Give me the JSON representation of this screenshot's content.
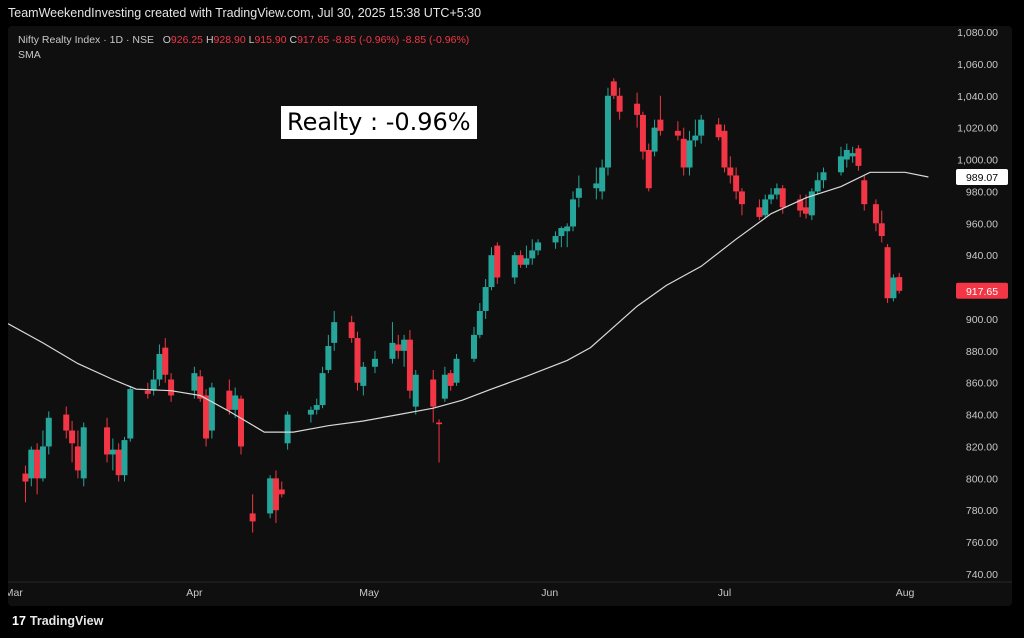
{
  "header": {
    "credit": "TeamWeekendInvesting created with TradingView.com, Jul 30, 2025 15:38 UTC+5:30"
  },
  "legend": {
    "symbol": "Nifty Realty Index · 1D · NSE",
    "o_label": "O",
    "o_value": "926.25",
    "h_label": "H",
    "h_value": "928.90",
    "l_label": "L",
    "l_value": "915.90",
    "c_label": "C",
    "c_value": "917.65",
    "change1": "-8.85 (-0.96%)",
    "change2": "-8.85 (-0.96%)",
    "indicator": "SMA"
  },
  "annotation": {
    "text": "Realty : -0.96%"
  },
  "footer": {
    "brand": "TradingView",
    "logo": "17"
  },
  "colors": {
    "up": "#26a69a",
    "down": "#f23645",
    "sma": "#d9d9d9",
    "background": "#0f0f0f",
    "axis_text": "#c8c8c8"
  },
  "chart_data": {
    "type": "candlestick",
    "title": "Nifty Realty Index · 1D · NSE",
    "ylim": [
      740,
      1080
    ],
    "y_ticks": [
      "1,080.00",
      "1,060.00",
      "1,040.00",
      "1,020.00",
      "1,000.00",
      "980.00",
      "960.00",
      "940.00",
      "920.00",
      "900.00",
      "880.00",
      "860.00",
      "840.00",
      "820.00",
      "800.00",
      "780.00",
      "760.00",
      "740.00"
    ],
    "x_ticks": [
      "Mar",
      "Apr",
      "May",
      "Jun",
      "Jul",
      "Aug"
    ],
    "x_tick_dates": [
      "2025-03-01",
      "2025-04-01",
      "2025-05-01",
      "2025-06-01",
      "2025-07-01",
      "2025-08-01"
    ],
    "x_range": [
      "2025-02-28",
      "2025-08-07"
    ],
    "price_labels": {
      "sma_last": "989.07",
      "close_last": "917.65"
    },
    "candles": [
      {
        "d": "2025-03-03",
        "o": 803,
        "h": 808,
        "l": 785,
        "c": 798
      },
      {
        "d": "2025-03-04",
        "o": 800,
        "h": 820,
        "l": 795,
        "c": 818
      },
      {
        "d": "2025-03-05",
        "o": 818,
        "h": 822,
        "l": 790,
        "c": 800
      },
      {
        "d": "2025-03-06",
        "o": 800,
        "h": 830,
        "l": 798,
        "c": 820
      },
      {
        "d": "2025-03-07",
        "o": 820,
        "h": 842,
        "l": 815,
        "c": 838
      },
      {
        "d": "2025-03-10",
        "o": 840,
        "h": 845,
        "l": 825,
        "c": 830
      },
      {
        "d": "2025-03-11",
        "o": 830,
        "h": 836,
        "l": 810,
        "c": 822
      },
      {
        "d": "2025-03-12",
        "o": 820,
        "h": 830,
        "l": 800,
        "c": 805
      },
      {
        "d": "2025-03-13",
        "o": 800,
        "h": 835,
        "l": 795,
        "c": 832
      },
      {
        "d": "2025-03-17",
        "o": 832,
        "h": 838,
        "l": 810,
        "c": 815
      },
      {
        "d": "2025-03-18",
        "o": 815,
        "h": 825,
        "l": 805,
        "c": 818
      },
      {
        "d": "2025-03-19",
        "o": 818,
        "h": 822,
        "l": 798,
        "c": 802
      },
      {
        "d": "2025-03-20",
        "o": 802,
        "h": 826,
        "l": 798,
        "c": 824
      },
      {
        "d": "2025-03-21",
        "o": 825,
        "h": 858,
        "l": 823,
        "c": 856
      },
      {
        "d": "2025-03-24",
        "o": 855,
        "h": 860,
        "l": 850,
        "c": 853
      },
      {
        "d": "2025-03-25",
        "o": 855,
        "h": 868,
        "l": 852,
        "c": 862
      },
      {
        "d": "2025-03-26",
        "o": 862,
        "h": 884,
        "l": 858,
        "c": 878
      },
      {
        "d": "2025-03-27",
        "o": 882,
        "h": 888,
        "l": 860,
        "c": 865
      },
      {
        "d": "2025-03-28",
        "o": 862,
        "h": 866,
        "l": 848,
        "c": 852
      },
      {
        "d": "2025-04-01",
        "o": 855,
        "h": 870,
        "l": 850,
        "c": 866
      },
      {
        "d": "2025-04-02",
        "o": 864,
        "h": 868,
        "l": 848,
        "c": 850
      },
      {
        "d": "2025-04-03",
        "o": 852,
        "h": 856,
        "l": 820,
        "c": 825
      },
      {
        "d": "2025-04-04",
        "o": 830,
        "h": 860,
        "l": 825,
        "c": 857
      },
      {
        "d": "2025-04-07",
        "o": 855,
        "h": 862,
        "l": 840,
        "c": 843
      },
      {
        "d": "2025-04-08",
        "o": 843,
        "h": 857,
        "l": 838,
        "c": 852
      },
      {
        "d": "2025-04-09",
        "o": 850,
        "h": 852,
        "l": 815,
        "c": 820
      },
      {
        "d": "2025-04-11",
        "o": 778,
        "h": 790,
        "l": 766,
        "c": 773
      },
      {
        "d": "2025-04-14",
        "o": 778,
        "h": 802,
        "l": 775,
        "c": 800
      },
      {
        "d": "2025-04-15",
        "o": 800,
        "h": 805,
        "l": 772,
        "c": 780
      },
      {
        "d": "2025-04-16",
        "o": 793,
        "h": 798,
        "l": 788,
        "c": 790
      },
      {
        "d": "2025-04-17",
        "o": 822,
        "h": 842,
        "l": 818,
        "c": 840
      },
      {
        "d": "2025-04-21",
        "o": 840,
        "h": 845,
        "l": 835,
        "c": 843
      },
      {
        "d": "2025-04-22",
        "o": 843,
        "h": 850,
        "l": 840,
        "c": 846
      },
      {
        "d": "2025-04-23",
        "o": 846,
        "h": 870,
        "l": 844,
        "c": 866
      },
      {
        "d": "2025-04-24",
        "o": 868,
        "h": 890,
        "l": 866,
        "c": 883
      },
      {
        "d": "2025-04-25",
        "o": 885,
        "h": 905,
        "l": 880,
        "c": 898
      },
      {
        "d": "2025-04-28",
        "o": 898,
        "h": 902,
        "l": 885,
        "c": 888
      },
      {
        "d": "2025-04-29",
        "o": 888,
        "h": 892,
        "l": 855,
        "c": 860
      },
      {
        "d": "2025-04-30",
        "o": 858,
        "h": 873,
        "l": 852,
        "c": 870
      },
      {
        "d": "2025-05-02",
        "o": 870,
        "h": 880,
        "l": 866,
        "c": 875
      },
      {
        "d": "2025-05-05",
        "o": 875,
        "h": 898,
        "l": 872,
        "c": 885
      },
      {
        "d": "2025-05-06",
        "o": 884,
        "h": 890,
        "l": 875,
        "c": 880
      },
      {
        "d": "2025-05-07",
        "o": 880,
        "h": 890,
        "l": 870,
        "c": 887
      },
      {
        "d": "2025-05-08",
        "o": 887,
        "h": 893,
        "l": 850,
        "c": 855
      },
      {
        "d": "2025-05-09",
        "o": 845,
        "h": 868,
        "l": 840,
        "c": 865
      },
      {
        "d": "2025-05-12",
        "o": 862,
        "h": 868,
        "l": 835,
        "c": 845
      },
      {
        "d": "2025-05-13",
        "o": 835,
        "h": 837,
        "l": 810,
        "c": 834
      },
      {
        "d": "2025-05-14",
        "o": 850,
        "h": 870,
        "l": 848,
        "c": 865
      },
      {
        "d": "2025-05-15",
        "o": 866,
        "h": 868,
        "l": 855,
        "c": 858
      },
      {
        "d": "2025-05-16",
        "o": 860,
        "h": 878,
        "l": 858,
        "c": 875
      },
      {
        "d": "2025-05-19",
        "o": 875,
        "h": 895,
        "l": 873,
        "c": 890
      },
      {
        "d": "2025-05-20",
        "o": 890,
        "h": 910,
        "l": 888,
        "c": 905
      },
      {
        "d": "2025-05-21",
        "o": 905,
        "h": 925,
        "l": 900,
        "c": 920
      },
      {
        "d": "2025-05-22",
        "o": 920,
        "h": 945,
        "l": 918,
        "c": 940
      },
      {
        "d": "2025-05-23",
        "o": 946,
        "h": 948,
        "l": 922,
        "c": 926
      },
      {
        "d": "2025-05-26",
        "o": 926,
        "h": 942,
        "l": 922,
        "c": 940
      },
      {
        "d": "2025-05-27",
        "o": 940,
        "h": 943,
        "l": 932,
        "c": 934
      },
      {
        "d": "2025-05-28",
        "o": 934,
        "h": 946,
        "l": 932,
        "c": 938
      },
      {
        "d": "2025-05-29",
        "o": 938,
        "h": 950,
        "l": 934,
        "c": 943
      },
      {
        "d": "2025-05-30",
        "o": 943,
        "h": 950,
        "l": 940,
        "c": 948
      },
      {
        "d": "2025-06-02",
        "o": 948,
        "h": 955,
        "l": 944,
        "c": 952
      },
      {
        "d": "2025-06-03",
        "o": 952,
        "h": 958,
        "l": 945,
        "c": 957
      },
      {
        "d": "2025-06-04",
        "o": 955,
        "h": 960,
        "l": 945,
        "c": 958
      },
      {
        "d": "2025-06-05",
        "o": 958,
        "h": 980,
        "l": 955,
        "c": 975
      },
      {
        "d": "2025-06-06",
        "o": 976,
        "h": 990,
        "l": 970,
        "c": 982
      },
      {
        "d": "2025-06-09",
        "o": 982,
        "h": 995,
        "l": 975,
        "c": 985
      },
      {
        "d": "2025-06-10",
        "o": 980,
        "h": 1000,
        "l": 975,
        "c": 995
      },
      {
        "d": "2025-06-11",
        "o": 995,
        "h": 1045,
        "l": 990,
        "c": 1040
      },
      {
        "d": "2025-06-12",
        "o": 1049,
        "h": 1051,
        "l": 1038,
        "c": 1040
      },
      {
        "d": "2025-06-13",
        "o": 1040,
        "h": 1045,
        "l": 1025,
        "c": 1030
      },
      {
        "d": "2025-06-16",
        "o": 1035,
        "h": 1042,
        "l": 1020,
        "c": 1028
      },
      {
        "d": "2025-06-17",
        "o": 1028,
        "h": 1030,
        "l": 1000,
        "c": 1005
      },
      {
        "d": "2025-06-18",
        "o": 1006,
        "h": 1010,
        "l": 980,
        "c": 982
      },
      {
        "d": "2025-06-19",
        "o": 1005,
        "h": 1025,
        "l": 1002,
        "c": 1020
      },
      {
        "d": "2025-06-20",
        "o": 1025,
        "h": 1040,
        "l": 1015,
        "c": 1018
      },
      {
        "d": "2025-06-23",
        "o": 1018,
        "h": 1024,
        "l": 1012,
        "c": 1015
      },
      {
        "d": "2025-06-24",
        "o": 1013,
        "h": 1020,
        "l": 990,
        "c": 995
      },
      {
        "d": "2025-06-25",
        "o": 995,
        "h": 1018,
        "l": 990,
        "c": 1012
      },
      {
        "d": "2025-06-26",
        "o": 1012,
        "h": 1025,
        "l": 1008,
        "c": 1015
      },
      {
        "d": "2025-06-27",
        "o": 1015,
        "h": 1028,
        "l": 1010,
        "c": 1025
      },
      {
        "d": "2025-06-30",
        "o": 1022,
        "h": 1026,
        "l": 1012,
        "c": 1014
      },
      {
        "d": "2025-07-01",
        "o": 1018,
        "h": 1022,
        "l": 992,
        "c": 995
      },
      {
        "d": "2025-07-02",
        "o": 995,
        "h": 1002,
        "l": 985,
        "c": 990
      },
      {
        "d": "2025-07-03",
        "o": 990,
        "h": 995,
        "l": 975,
        "c": 980
      },
      {
        "d": "2025-07-04",
        "o": 980,
        "h": 982,
        "l": 965,
        "c": 972
      },
      {
        "d": "2025-07-07",
        "o": 970,
        "h": 975,
        "l": 962,
        "c": 964
      },
      {
        "d": "2025-07-08",
        "o": 965,
        "h": 978,
        "l": 963,
        "c": 975
      },
      {
        "d": "2025-07-09",
        "o": 975,
        "h": 982,
        "l": 972,
        "c": 978
      },
      {
        "d": "2025-07-10",
        "o": 978,
        "h": 985,
        "l": 975,
        "c": 982
      },
      {
        "d": "2025-07-11",
        "o": 982,
        "h": 984,
        "l": 966,
        "c": 970
      },
      {
        "d": "2025-07-14",
        "o": 975,
        "h": 978,
        "l": 964,
        "c": 968
      },
      {
        "d": "2025-07-15",
        "o": 970,
        "h": 978,
        "l": 963,
        "c": 966
      },
      {
        "d": "2025-07-16",
        "o": 965,
        "h": 982,
        "l": 962,
        "c": 980
      },
      {
        "d": "2025-07-17",
        "o": 980,
        "h": 992,
        "l": 978,
        "c": 987
      },
      {
        "d": "2025-07-18",
        "o": 987,
        "h": 995,
        "l": 982,
        "c": 992
      },
      {
        "d": "2025-07-21",
        "o": 992,
        "h": 1008,
        "l": 990,
        "c": 1002
      },
      {
        "d": "2025-07-22",
        "o": 1000,
        "h": 1010,
        "l": 995,
        "c": 1006
      },
      {
        "d": "2025-07-23",
        "o": 1002,
        "h": 1008,
        "l": 998,
        "c": 1004
      },
      {
        "d": "2025-07-24",
        "o": 1007,
        "h": 1009,
        "l": 993,
        "c": 996
      },
      {
        "d": "2025-07-25",
        "o": 987,
        "h": 990,
        "l": 968,
        "c": 972
      },
      {
        "d": "2025-07-27",
        "o": 972,
        "h": 975,
        "l": 955,
        "c": 960
      },
      {
        "d": "2025-07-28",
        "o": 960,
        "h": 968,
        "l": 948,
        "c": 952
      },
      {
        "d": "2025-07-29",
        "o": 945,
        "h": 947,
        "l": 910,
        "c": 913
      },
      {
        "d": "2025-07-30",
        "o": 913,
        "h": 928,
        "l": 911,
        "c": 926
      },
      {
        "d": "2025-07-31",
        "o": 926.25,
        "h": 928.9,
        "l": 915.9,
        "c": 917.65
      }
    ],
    "sma": [
      {
        "d": "2025-02-28",
        "v": 897
      },
      {
        "d": "2025-03-06",
        "v": 885
      },
      {
        "d": "2025-03-12",
        "v": 872
      },
      {
        "d": "2025-03-18",
        "v": 862
      },
      {
        "d": "2025-03-22",
        "v": 856
      },
      {
        "d": "2025-03-28",
        "v": 855
      },
      {
        "d": "2025-04-02",
        "v": 852
      },
      {
        "d": "2025-04-07",
        "v": 842
      },
      {
        "d": "2025-04-13",
        "v": 829
      },
      {
        "d": "2025-04-18",
        "v": 829
      },
      {
        "d": "2025-04-24",
        "v": 833
      },
      {
        "d": "2025-04-30",
        "v": 836
      },
      {
        "d": "2025-05-06",
        "v": 840
      },
      {
        "d": "2025-05-12",
        "v": 844
      },
      {
        "d": "2025-05-17",
        "v": 849
      },
      {
        "d": "2025-05-22",
        "v": 856
      },
      {
        "d": "2025-05-28",
        "v": 864
      },
      {
        "d": "2025-06-04",
        "v": 874
      },
      {
        "d": "2025-06-08",
        "v": 882
      },
      {
        "d": "2025-06-12",
        "v": 895
      },
      {
        "d": "2025-06-16",
        "v": 908
      },
      {
        "d": "2025-06-21",
        "v": 921
      },
      {
        "d": "2025-06-27",
        "v": 933
      },
      {
        "d": "2025-07-03",
        "v": 950
      },
      {
        "d": "2025-07-09",
        "v": 966
      },
      {
        "d": "2025-07-15",
        "v": 976
      },
      {
        "d": "2025-07-21",
        "v": 983
      },
      {
        "d": "2025-07-26",
        "v": 992
      },
      {
        "d": "2025-08-01",
        "v": 992
      },
      {
        "d": "2025-08-05",
        "v": 989.07
      }
    ]
  }
}
